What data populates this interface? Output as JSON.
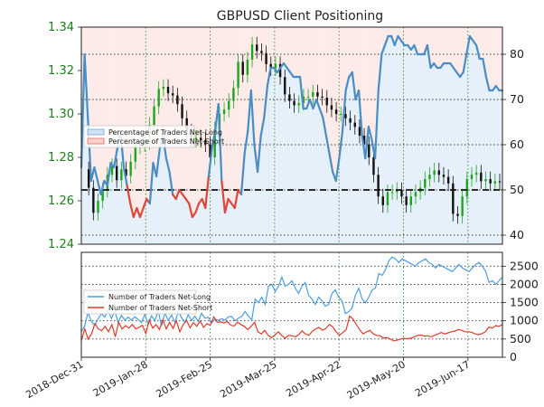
{
  "chart_data": {
    "title": "GBPUSD Client Positioning",
    "type": "line",
    "top_panel": {
      "price_axis": {
        "ticks": [
          "1.34",
          "1.32",
          "1.30",
          "1.28",
          "1.26",
          "1.24"
        ],
        "tick_values": [
          1.34,
          1.32,
          1.3,
          1.28,
          1.26,
          1.24
        ],
        "range": [
          1.24,
          1.34
        ],
        "color": "#1e7b1e"
      },
      "percent_axis": {
        "ticks": [
          "80",
          "70",
          "60",
          "50",
          "40"
        ],
        "tick_values": [
          80,
          70,
          60,
          50,
          40
        ],
        "range": [
          38,
          86
        ]
      },
      "reference_line": {
        "value": 50,
        "style": "dashed"
      },
      "legend": {
        "placement": "middle-left",
        "long_label": "Percentage of Traders Net-Long",
        "short_label": "Percentage of Traders Net-Short"
      },
      "colors": {
        "long": "#4a8cc4",
        "short": "#e0453a",
        "long_fill": "#cfe3f5",
        "short_fill": "#f8d2cd",
        "candle_up": "#1ea51e",
        "candle_down": "#111111"
      },
      "percent_long": [
        55,
        80,
        66,
        52,
        55,
        52,
        49,
        52,
        51,
        56,
        55,
        59,
        63,
        55,
        51,
        47,
        44,
        46,
        44,
        46,
        48,
        47,
        56,
        53,
        59,
        62,
        57,
        54,
        49,
        48,
        50,
        49,
        48,
        47,
        44,
        45,
        47,
        48,
        46,
        53,
        59,
        63,
        69,
        52,
        45,
        48,
        47,
        46,
        50,
        49,
        58,
        63,
        72,
        60,
        54,
        62,
        66,
        73,
        77,
        77,
        76,
        77,
        78,
        77,
        76,
        75,
        75,
        75,
        68,
        68,
        70,
        68,
        70,
        68,
        66,
        62,
        58,
        54,
        52,
        57,
        63,
        72,
        75,
        76,
        70,
        72,
        62,
        57,
        64,
        61,
        57,
        72,
        80,
        82,
        84,
        84,
        82,
        84,
        83,
        82,
        82,
        81,
        82,
        80,
        80,
        80,
        82,
        77,
        78,
        77,
        77,
        78,
        78,
        78,
        77,
        76,
        75,
        76,
        80,
        84,
        83,
        82,
        79,
        79,
        75,
        72,
        72,
        73,
        72,
        72
      ],
      "price_close": [
        1.2745,
        1.266,
        1.2545,
        1.26,
        1.265,
        1.272,
        1.276,
        1.2695,
        1.2745,
        1.2715,
        1.278,
        1.285,
        1.286,
        1.287,
        1.295,
        1.3035,
        1.3115,
        1.3125,
        1.3095,
        1.3085,
        1.3045,
        1.298,
        1.292,
        1.288,
        1.289,
        1.288,
        1.286,
        1.28,
        1.293,
        1.3,
        1.302,
        1.306,
        1.312,
        1.324,
        1.318,
        1.325,
        1.332,
        1.329,
        1.328,
        1.323,
        1.321,
        1.323,
        1.317,
        1.309,
        1.306,
        1.304,
        1.305,
        1.308,
        1.308,
        1.31,
        1.308,
        1.3075,
        1.304,
        1.302,
        1.3,
        1.3,
        1.298,
        1.296,
        1.294,
        1.29,
        1.286,
        1.28,
        1.272,
        1.262,
        1.258,
        1.264,
        1.264,
        1.265,
        1.262,
        1.258,
        1.262,
        1.264,
        1.266,
        1.27,
        1.272,
        1.274,
        1.272,
        1.271,
        1.268,
        1.254,
        1.253,
        1.262,
        1.27,
        1.272,
        1.273,
        1.269,
        1.27,
        1.268,
        1.269,
        1.2685
      ]
    },
    "bottom_panel": {
      "y_axis": {
        "ticks": [
          "2500",
          "2000",
          "1500",
          "1000",
          "500",
          "0"
        ],
        "tick_values": [
          2500,
          2000,
          1500,
          1000,
          500,
          0
        ],
        "range": [
          0,
          2880
        ]
      },
      "legend": {
        "placement": "top-left",
        "long_label": "Number of Traders Net-Long",
        "short_label": "Number of Traders Net-Short"
      },
      "colors": {
        "long": "#4a9ee0",
        "short": "#e03a2c"
      },
      "net_long": [
        700,
        860,
        1230,
        980,
        880,
        1050,
        1200,
        1100,
        1300,
        1060,
        1280,
        960,
        1150,
        1020,
        1100,
        1020,
        1110,
        1040,
        950,
        1180,
        900,
        1140,
        1000,
        1280,
        860,
        1220,
        1010,
        1160,
        950,
        1260,
        1080,
        960,
        1170,
        1010,
        1130,
        980,
        1210,
        1070,
        1100,
        940,
        1050,
        1010,
        1060,
        1020,
        1110,
        1120,
        1000,
        1070,
        1120,
        1260,
        1130,
        1020,
        1600,
        1500,
        1650,
        1450,
        1950,
        2000,
        1800,
        1950,
        2200,
        1950,
        2000,
        2100,
        1900,
        1750,
        1950,
        2050,
        1700,
        1600,
        1450,
        1650,
        1550,
        1400,
        1450,
        1750,
        1850,
        1650,
        1550,
        1200,
        1250,
        1350,
        1700,
        1900,
        1600,
        1500,
        1650,
        1850,
        1900,
        2300,
        2250,
        2400,
        2650,
        2750,
        2700,
        2600,
        2700,
        2650,
        2600,
        2550,
        2500,
        2600,
        2650,
        2700,
        2600,
        2550,
        2450,
        2550,
        2500,
        2450,
        2400,
        2350,
        2450,
        2550,
        2450,
        2400,
        2350,
        2450,
        2550,
        2600,
        2500,
        2350,
        2050,
        2100,
        2000,
        2100,
        2200
      ],
      "net_short": [
        450,
        780,
        500,
        640,
        920,
        780,
        730,
        850,
        700,
        900,
        560,
        960,
        780,
        870,
        800,
        900,
        780,
        820,
        880,
        650,
        1020,
        800,
        900,
        760,
        1030,
        780,
        960,
        790,
        1000,
        700,
        900,
        1010,
        810,
        950,
        850,
        990,
        820,
        920,
        880,
        1110,
        960,
        970,
        940,
        980,
        880,
        860,
        960,
        900,
        850,
        760,
        850,
        960,
        700,
        640,
        740,
        600,
        540,
        610,
        700,
        600,
        520,
        600,
        590,
        560,
        620,
        720,
        640,
        600,
        710,
        780,
        820,
        740,
        790,
        900,
        840,
        700,
        600,
        680,
        760,
        1130,
        1050,
        900,
        750,
        640,
        700,
        740,
        640,
        600,
        590,
        530,
        540,
        500,
        450,
        470,
        500,
        520,
        510,
        520,
        560,
        600,
        610,
        580,
        590,
        560,
        600,
        640,
        680,
        640,
        670,
        700,
        720,
        760,
        740,
        700,
        700,
        680,
        640,
        620,
        650,
        700,
        830,
        800,
        870,
        850,
        900
      ]
    },
    "x_axis": {
      "tick_labels": [
        "2018-Dec-31",
        "2019-Jan-28",
        "2019-Feb-25",
        "2019-Mar-25",
        "2019-Apr-22",
        "2019-May-20",
        "2019-Jun-17"
      ],
      "tick_days": [
        0,
        28,
        56,
        84,
        112,
        140,
        168
      ],
      "range_days": [
        0,
        183
      ]
    }
  }
}
